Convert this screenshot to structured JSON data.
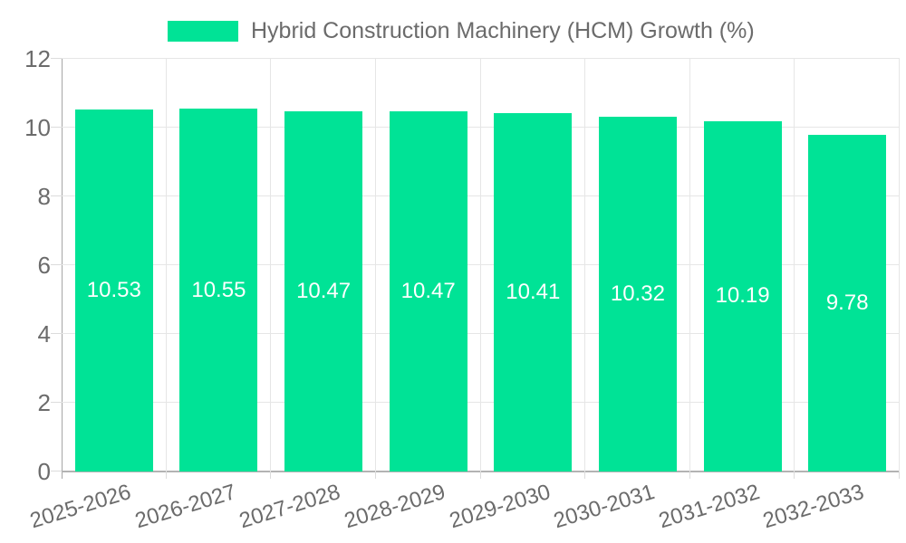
{
  "legend": {
    "label": "Hybrid Construction Machinery (HCM) Growth (%)"
  },
  "chart_data": {
    "type": "bar",
    "title": "",
    "xlabel": "",
    "ylabel": "",
    "categories": [
      "2025-2026",
      "2026-2027",
      "2027-2028",
      "2028-2029",
      "2029-2030",
      "2030-2031",
      "2031-2032",
      "2032-2033"
    ],
    "series": [
      {
        "name": "Hybrid Construction Machinery (HCM) Growth (%)",
        "values": [
          10.53,
          10.55,
          10.47,
          10.47,
          10.41,
          10.32,
          10.19,
          9.78
        ]
      }
    ],
    "data_labels": [
      "10.53",
      "10.55",
      "10.47",
      "10.47",
      "10.41",
      "10.32",
      "10.19",
      "9.78"
    ],
    "ylim": [
      0,
      12
    ],
    "yticks": [
      0,
      2,
      4,
      6,
      8,
      10,
      12
    ],
    "ytick_labels": [
      "0",
      "2",
      "4",
      "6",
      "8",
      "10",
      "12"
    ],
    "grid": true,
    "legend_position": "top",
    "colors": {
      "bar": "#00E396",
      "grid": "#e6e6e6",
      "axis_line": "#a6a6a6",
      "tick_text": "#6b6b6b",
      "data_label_text": "#ffffff",
      "background": "#ffffff"
    }
  }
}
